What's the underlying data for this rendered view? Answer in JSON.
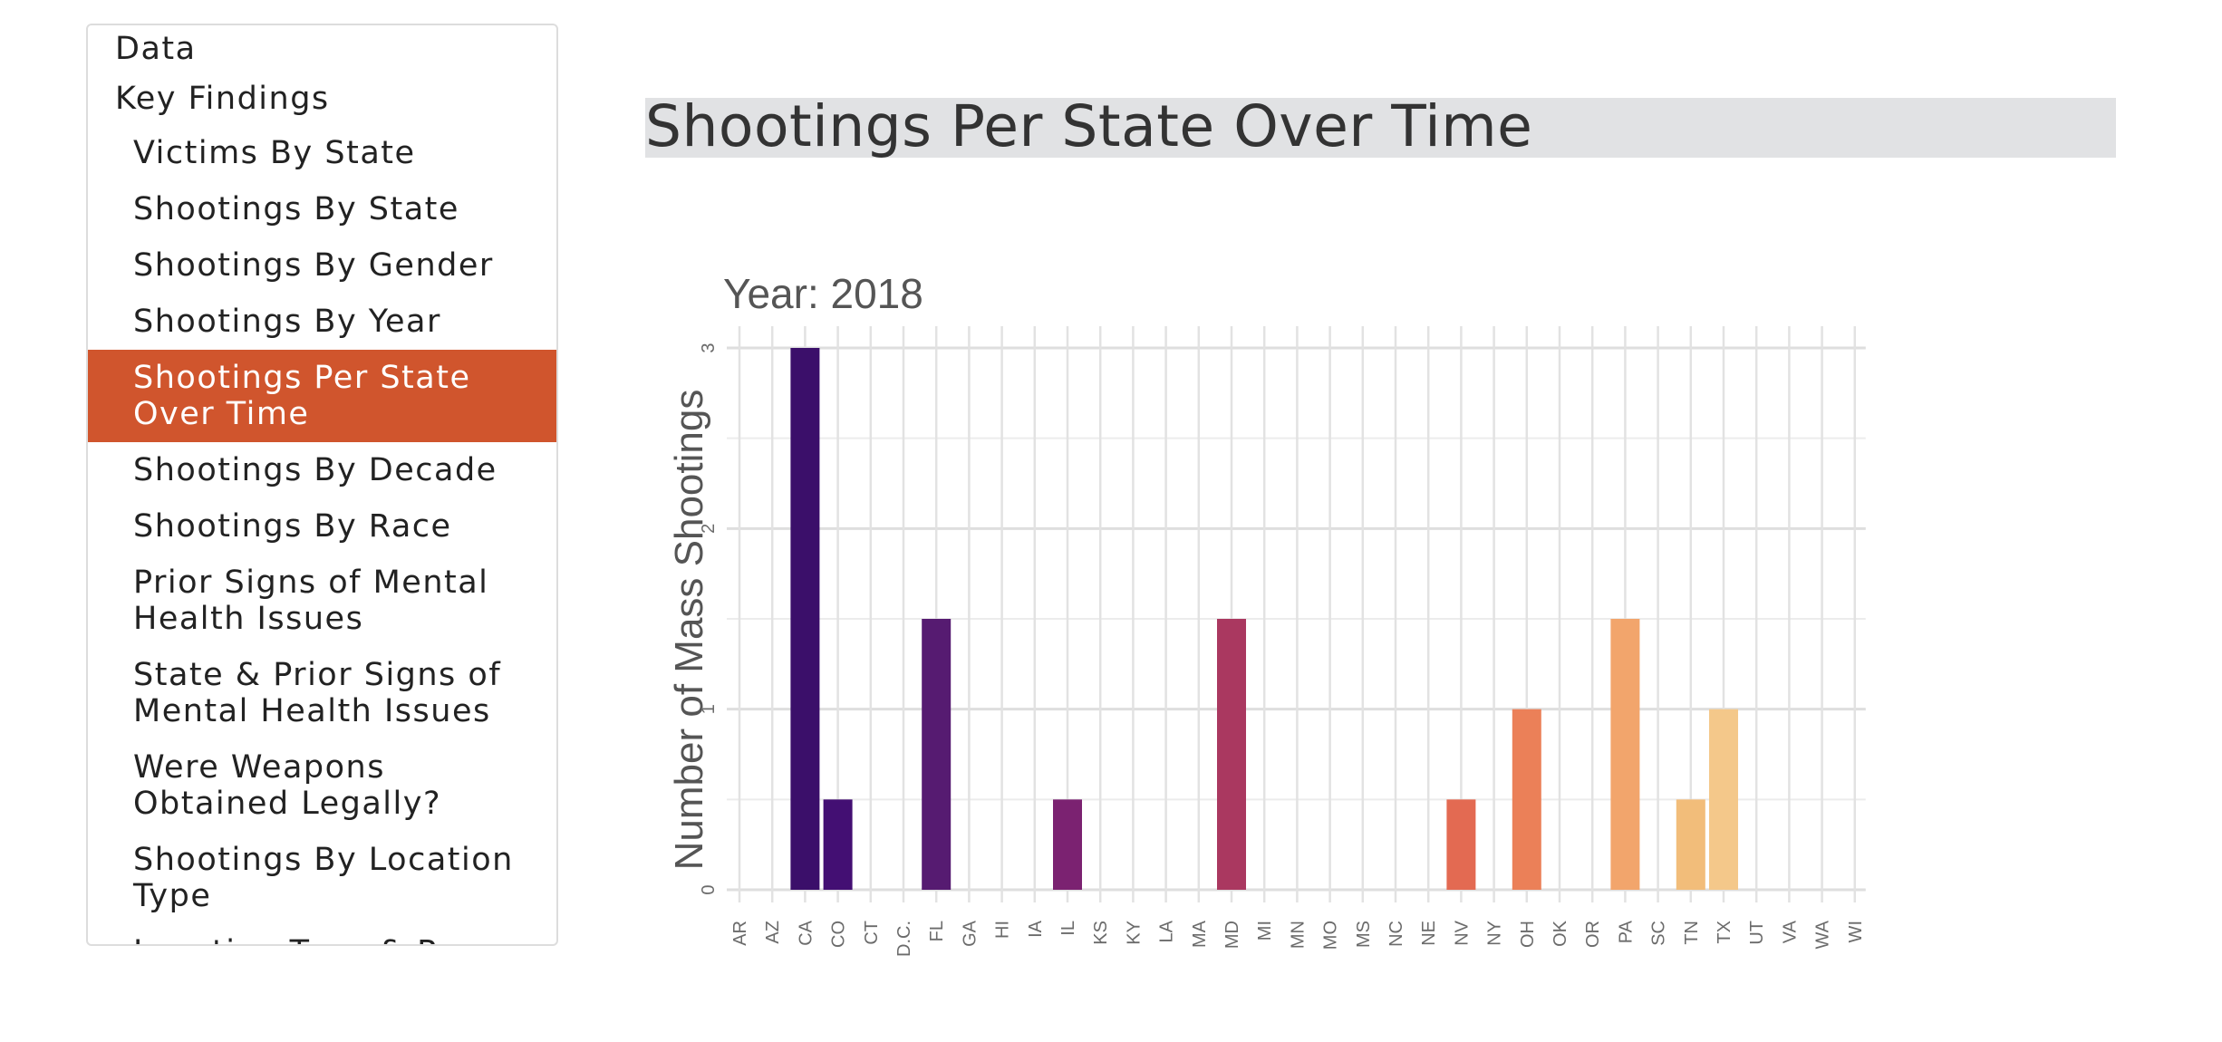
{
  "toc": {
    "items": [
      {
        "label": "Data",
        "level": 1,
        "active": false
      },
      {
        "label": "Key Findings",
        "level": 1,
        "active": false
      },
      {
        "label": "Victims By State",
        "level": 2,
        "active": false
      },
      {
        "label": "Shootings By State",
        "level": 2,
        "active": false
      },
      {
        "label": "Shootings By Gender",
        "level": 2,
        "active": false
      },
      {
        "label": "Shootings By Year",
        "level": 2,
        "active": false
      },
      {
        "label": "Shootings Per State Over Time",
        "level": 2,
        "active": true
      },
      {
        "label": "Shootings By Decade",
        "level": 2,
        "active": false
      },
      {
        "label": "Shootings By Race",
        "level": 2,
        "active": false
      },
      {
        "label": "Prior Signs of Mental Health Issues",
        "level": 2,
        "active": false
      },
      {
        "label": "State & Prior Signs of Mental Health Issues",
        "level": 2,
        "active": false
      },
      {
        "label": "Were Weapons Obtained Legally?",
        "level": 2,
        "active": false
      },
      {
        "label": "Shootings By Location Type",
        "level": 2,
        "active": false
      },
      {
        "label": "Location Type & Race",
        "level": 2,
        "active": false
      }
    ],
    "active_color": "#d0552d"
  },
  "page": {
    "title": "Shootings Per State Over Time"
  },
  "chart_data": {
    "type": "bar",
    "title": "Year: 2018",
    "xlabel": "",
    "ylabel": "Number of Mass Shootings",
    "ylim": [
      0,
      3
    ],
    "yticks": [
      "0",
      "1",
      "2",
      "3"
    ],
    "grid": true,
    "categories": [
      "AR",
      "AZ",
      "CA",
      "CO",
      "CT",
      "D.C.",
      "FL",
      "GA",
      "HI",
      "IA",
      "IL",
      "KS",
      "KY",
      "LA",
      "MA",
      "MD",
      "MI",
      "MN",
      "MO",
      "MS",
      "NC",
      "NE",
      "NV",
      "NY",
      "OH",
      "OK",
      "OR",
      "PA",
      "SC",
      "TN",
      "TX",
      "UT",
      "VA",
      "WA",
      "WI"
    ],
    "values": [
      0,
      0,
      3,
      0.5,
      0,
      0,
      1.5,
      0,
      0,
      0,
      0.5,
      0,
      0,
      0,
      0,
      1.5,
      0,
      0,
      0,
      0,
      0,
      0,
      0.5,
      0,
      1,
      0,
      0,
      1.5,
      0,
      0.5,
      1,
      0,
      0,
      0,
      0
    ],
    "colors": {
      "CA": "#3b0f6a",
      "CO": "#430f73",
      "FL": "#561b71",
      "IL": "#7b2271",
      "MD": "#aa3860",
      "NV": "#e36a52",
      "OH": "#eb8058",
      "PA": "#f2a56c",
      "TN": "#f2bd7a",
      "TX": "#f4c88a"
    }
  }
}
